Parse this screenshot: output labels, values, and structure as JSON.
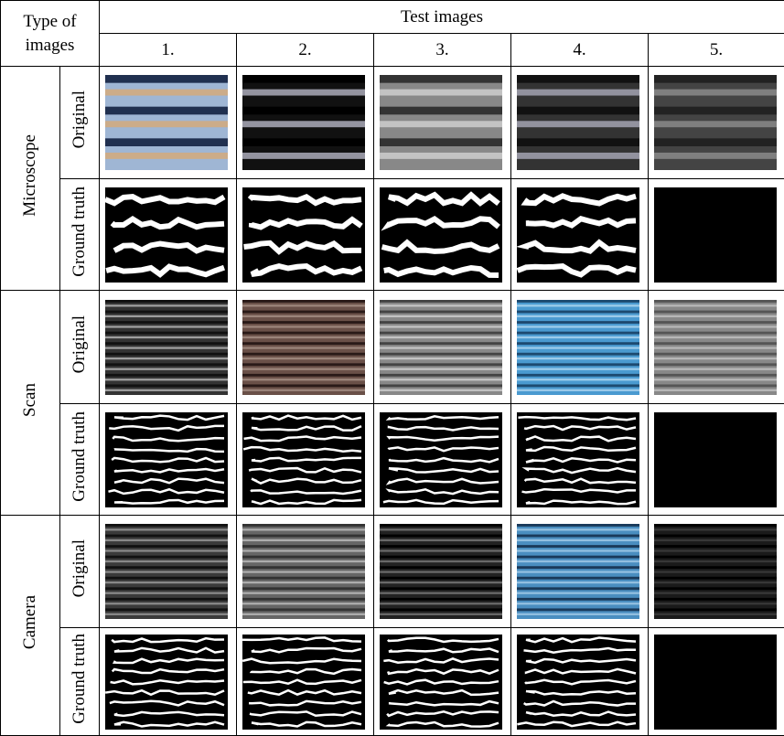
{
  "table": {
    "corner": "Type of images",
    "header": "Test images",
    "columns": [
      "1.",
      "2.",
      "3.",
      "4.",
      "5."
    ],
    "groups": [
      {
        "label": "Microscope",
        "rows": [
          "Original",
          "Ground truth"
        ]
      },
      {
        "label": "Scan",
        "rows": [
          "Original",
          "Ground truth"
        ]
      },
      {
        "label": "Camera",
        "rows": [
          "Original",
          "Ground truth"
        ]
      }
    ]
  }
}
